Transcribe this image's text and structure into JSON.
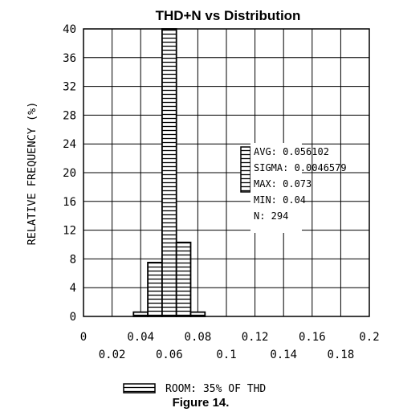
{
  "chart_data": {
    "type": "bar",
    "title": "THD+N vs Distribution",
    "ylabel": "RELATIVE FREQUENCY (%)",
    "xlabel": "",
    "xlim": [
      0,
      0.2
    ],
    "ylim": [
      0,
      40
    ],
    "x_ticks_row1": [
      "0",
      "0.04",
      "0.08",
      "0.12",
      "0.16",
      "0.2"
    ],
    "x_ticks_row2": [
      "0.02",
      "0.06",
      "0.1",
      "0.14",
      "0.18"
    ],
    "y_ticks": [
      "0",
      "4",
      "8",
      "12",
      "16",
      "20",
      "24",
      "28",
      "32",
      "36",
      "40"
    ],
    "grid": true,
    "bin_width": 0.01,
    "bars": [
      {
        "x": 0.04,
        "value": 0.6
      },
      {
        "x": 0.05,
        "value": 7.5
      },
      {
        "x": 0.06,
        "value": 40
      },
      {
        "x": 0.07,
        "value": 10.3
      },
      {
        "x": 0.08,
        "value": 0.6
      }
    ],
    "stats": {
      "avg": "AVG: 0.056102",
      "sigma": "SIGMA: 0.0046579",
      "max": "MAX: 0.073",
      "min": "MIN: 0.04",
      "n": "N: 294"
    },
    "legend": {
      "label": "ROOM: 35% OF THD"
    }
  },
  "caption": "Figure 14."
}
